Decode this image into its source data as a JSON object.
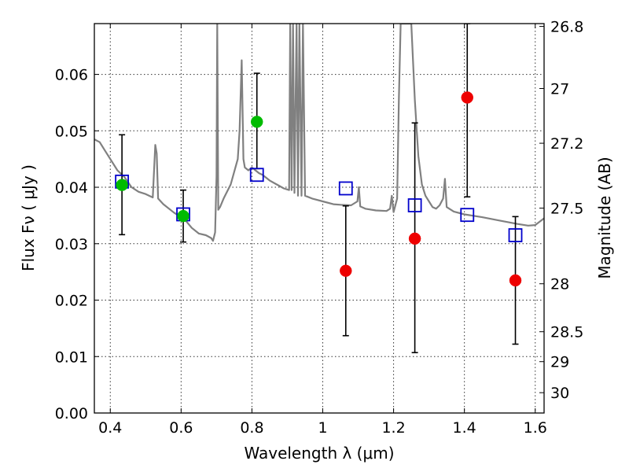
{
  "chart_data": {
    "type": "scatter",
    "xlabel": "Wavelength  λ (μm)",
    "ylabel": "Flux  Fν  ( μJy )",
    "y2label": "Magnitude (AB)",
    "xlim": [
      0.355,
      1.625
    ],
    "ylim": [
      0.0,
      0.069
    ],
    "grid": true,
    "x_ticks": [
      0.4,
      0.6,
      0.8,
      1.0,
      1.2,
      1.4,
      1.6
    ],
    "x_tick_labels": [
      "0.4",
      "0.6",
      "0.8",
      "1",
      "1.2",
      "1.4",
      "1.6"
    ],
    "y_ticks": [
      0.0,
      0.01,
      0.02,
      0.03,
      0.04,
      0.05,
      0.06
    ],
    "y_tick_labels": [
      "0.00",
      "0.01",
      "0.02",
      "0.03",
      "0.04",
      "0.05",
      "0.06"
    ],
    "y2_ticks": [
      {
        "label": "26.8",
        "flux": 0.0685
      },
      {
        "label": "27",
        "flux": 0.0575
      },
      {
        "label": "27.2",
        "flux": 0.0478
      },
      {
        "label": "27.5",
        "flux": 0.0363
      },
      {
        "label": "28",
        "flux": 0.0229
      },
      {
        "label": "28.5",
        "flux": 0.0144
      },
      {
        "label": "29",
        "flux": 0.0091
      },
      {
        "label": "30",
        "flux": 0.0036
      }
    ],
    "series": [
      {
        "marker": "circle",
        "color": "#00bb00",
        "points": [
          {
            "x": 0.433,
            "y": 0.0404,
            "err_low": 0.0316,
            "err_high": 0.0493
          },
          {
            "x": 0.606,
            "y": 0.0349,
            "err_low": 0.0303,
            "err_high": 0.0395
          },
          {
            "x": 0.814,
            "y": 0.0516,
            "err_low": 0.0433,
            "err_high": 0.0602
          }
        ]
      },
      {
        "marker": "circle",
        "color": "#ee0000",
        "points": [
          {
            "x": 1.065,
            "y": 0.0252,
            "err_low": 0.0137,
            "err_high": 0.0367
          },
          {
            "x": 1.26,
            "y": 0.0309,
            "err_low": 0.0107,
            "err_high": 0.0514
          },
          {
            "x": 1.408,
            "y": 0.0559,
            "err_low": 0.0383,
            "err_high": 0.069
          },
          {
            "x": 1.544,
            "y": 0.0235,
            "err_low": 0.0122,
            "err_high": 0.0348
          }
        ]
      },
      {
        "marker": "open-square",
        "color": "#0000cc",
        "points": [
          {
            "x": 0.433,
            "y": 0.041
          },
          {
            "x": 0.606,
            "y": 0.0352
          },
          {
            "x": 0.814,
            "y": 0.0422
          },
          {
            "x": 1.065,
            "y": 0.0398
          },
          {
            "x": 1.26,
            "y": 0.0368
          },
          {
            "x": 1.408,
            "y": 0.0351
          },
          {
            "x": 1.544,
            "y": 0.0315
          }
        ]
      }
    ],
    "model_spectrum": {
      "color": "#808080",
      "x": [
        0.355,
        0.37,
        0.385,
        0.4,
        0.42,
        0.44,
        0.46,
        0.48,
        0.5,
        0.52,
        0.527,
        0.531,
        0.535,
        0.55,
        0.58,
        0.61,
        0.63,
        0.65,
        0.67,
        0.685,
        0.69,
        0.696,
        0.7,
        0.702,
        0.705,
        0.71,
        0.72,
        0.74,
        0.76,
        0.765,
        0.771,
        0.776,
        0.78,
        0.79,
        0.8,
        0.81,
        0.82,
        0.83,
        0.85,
        0.87,
        0.89,
        0.905,
        0.908,
        0.912,
        0.916,
        0.92,
        0.926,
        0.93,
        0.934,
        0.94,
        0.944,
        0.95,
        0.97,
        1.0,
        1.03,
        1.05,
        1.08,
        1.098,
        1.102,
        1.106,
        1.12,
        1.15,
        1.18,
        1.19,
        1.195,
        1.2,
        1.21,
        1.215,
        1.22,
        1.225,
        1.232,
        1.24,
        1.25,
        1.26,
        1.27,
        1.28,
        1.29,
        1.3,
        1.31,
        1.32,
        1.33,
        1.34,
        1.345,
        1.35,
        1.37,
        1.4,
        1.45,
        1.5,
        1.55,
        1.58,
        1.6,
        1.625
      ],
      "y": [
        0.0485,
        0.048,
        0.0465,
        0.045,
        0.043,
        0.0418,
        0.04,
        0.0392,
        0.0388,
        0.0382,
        0.0475,
        0.046,
        0.038,
        0.037,
        0.0355,
        0.0343,
        0.0328,
        0.0318,
        0.0315,
        0.031,
        0.0305,
        0.032,
        0.042,
        0.069,
        0.036,
        0.0365,
        0.038,
        0.0405,
        0.045,
        0.05,
        0.0625,
        0.045,
        0.0435,
        0.043,
        0.0435,
        0.043,
        0.0425,
        0.0422,
        0.0412,
        0.0405,
        0.0398,
        0.0395,
        0.069,
        0.0395,
        0.069,
        0.039,
        0.069,
        0.0385,
        0.069,
        0.0385,
        0.069,
        0.0385,
        0.038,
        0.0375,
        0.037,
        0.0369,
        0.0368,
        0.0375,
        0.04,
        0.0366,
        0.0362,
        0.0359,
        0.0358,
        0.0362,
        0.0385,
        0.0356,
        0.038,
        0.0555,
        0.069,
        0.069,
        0.069,
        0.069,
        0.069,
        0.0555,
        0.0455,
        0.0405,
        0.0385,
        0.0375,
        0.0365,
        0.0362,
        0.0368,
        0.038,
        0.0415,
        0.0365,
        0.0357,
        0.0352,
        0.0347,
        0.0341,
        0.0335,
        0.0332,
        0.0333,
        0.0345
      ]
    }
  }
}
